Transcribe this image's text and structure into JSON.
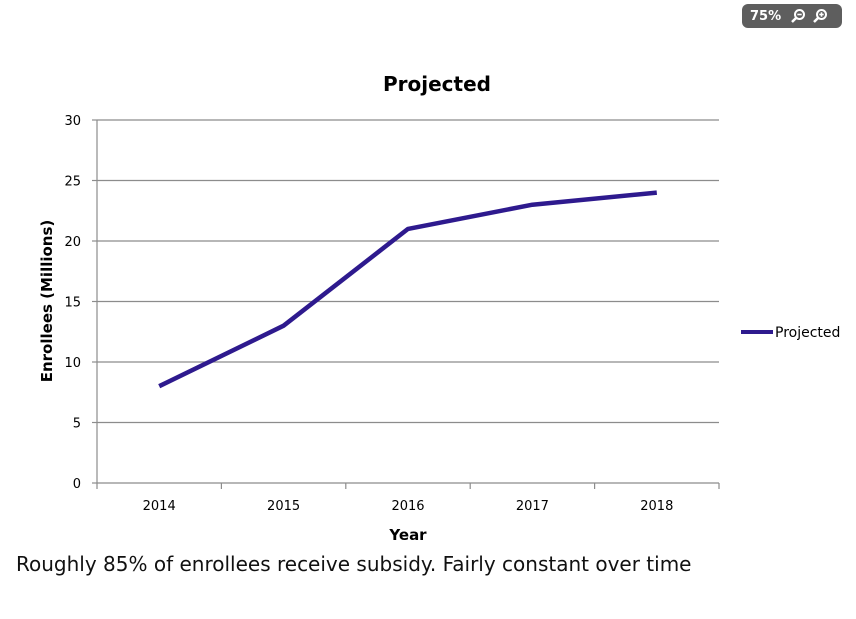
{
  "toolbar": {
    "zoom_level": "75%",
    "zoom_out_icon": "zoom-out-icon",
    "zoom_in_icon": "zoom-in-icon"
  },
  "chart_data": {
    "type": "line",
    "title": "Projected",
    "xlabel": "Year",
    "ylabel": "Enrollees (Millions)",
    "categories": [
      "2014",
      "2015",
      "2016",
      "2017",
      "2018"
    ],
    "series": [
      {
        "name": "Projected",
        "values": [
          8,
          13,
          21,
          23,
          24
        ],
        "color": "#2e1a8e"
      }
    ],
    "ylim": [
      0,
      30
    ],
    "yticks": [
      0,
      5,
      10,
      15,
      20,
      25,
      30
    ],
    "grid": true,
    "legend": "right"
  },
  "caption": "Roughly 85% of enrollees receive subsidy. Fairly constant over time"
}
